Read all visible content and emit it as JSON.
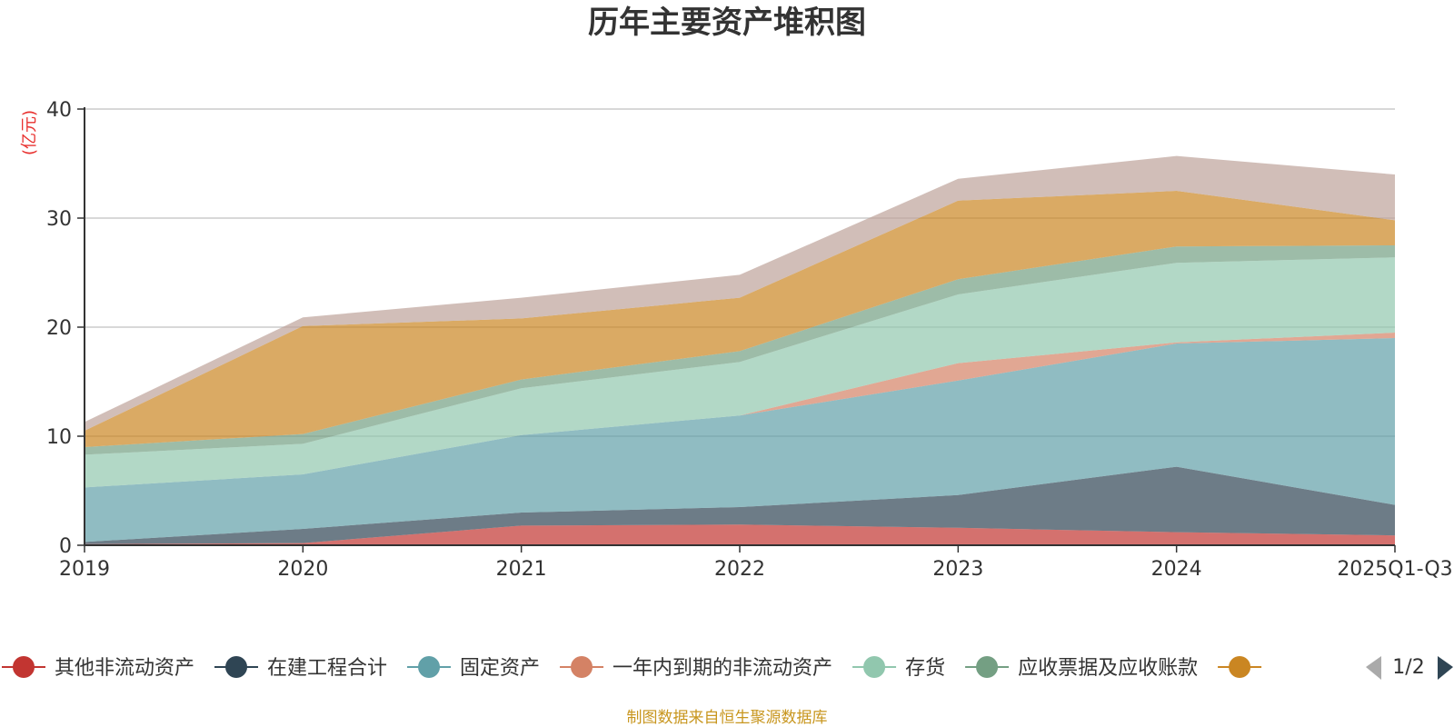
{
  "chart_data": {
    "type": "area",
    "stacked": true,
    "title": "历年主要资产堆积图",
    "ylabel": "(亿元)",
    "xlabel": "",
    "ylim": [
      0,
      40
    ],
    "yticks": [
      0,
      10,
      20,
      30,
      40
    ],
    "grid": true,
    "categories": [
      "2019",
      "2020",
      "2021",
      "2022",
      "2023",
      "2024",
      "2025Q1-Q3"
    ],
    "series": [
      {
        "name": "其他非流动资产",
        "color": "#c23531",
        "values": [
          0.1,
          0.2,
          1.8,
          1.9,
          1.6,
          1.2,
          0.9
        ]
      },
      {
        "name": "在建工程合计",
        "color": "#2f4554",
        "values": [
          0.2,
          1.3,
          1.2,
          1.6,
          3.0,
          6.0,
          2.8
        ]
      },
      {
        "name": "固定资产",
        "color": "#61a0a8",
        "values": [
          5.0,
          5.0,
          7.1,
          8.4,
          10.5,
          11.3,
          15.3
        ]
      },
      {
        "name": "一年内到期的非流动资产",
        "color": "#d48265",
        "values": [
          0.0,
          0.0,
          0.0,
          0.0,
          1.6,
          0.1,
          0.5
        ]
      },
      {
        "name": "存货",
        "color": "#91c7ae",
        "values": [
          3.0,
          2.8,
          4.3,
          4.9,
          6.3,
          7.3,
          6.9
        ]
      },
      {
        "name": "应收票据及应收账款",
        "color": "#749f83",
        "values": [
          0.7,
          0.9,
          0.8,
          1.0,
          1.4,
          1.5,
          1.1
        ]
      },
      {
        "name": "",
        "color": "#ca8622",
        "values": [
          1.5,
          9.9,
          5.6,
          4.9,
          7.2,
          5.1,
          2.3
        ]
      },
      {
        "name": "",
        "color": "#bda29a",
        "values": [
          0.8,
          0.8,
          1.9,
          2.1,
          2.0,
          3.2,
          4.2
        ]
      }
    ],
    "legend": {
      "position": "bottom",
      "visible_series": 7,
      "page": "1/2"
    }
  },
  "footer": {
    "source": "制图数据来自恒生聚源数据库"
  }
}
